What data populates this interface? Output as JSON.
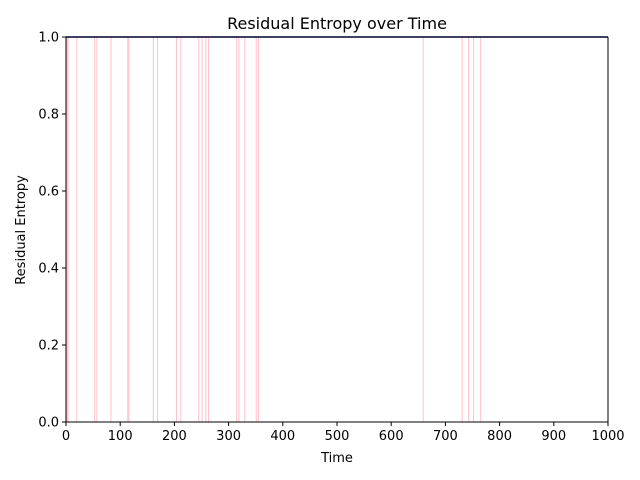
{
  "chart_data": {
    "type": "line",
    "title": "Residual Entropy over Time",
    "xlabel": "Time",
    "ylabel": "Residual Entropy",
    "xlim": [
      0,
      1000
    ],
    "ylim": [
      0,
      1.0
    ],
    "xticks": [
      "0",
      "100",
      "200",
      "300",
      "400",
      "500",
      "600",
      "700",
      "800",
      "900",
      "1000"
    ],
    "yticks": [
      "0.0",
      "0.2",
      "0.4",
      "0.6",
      "0.8",
      "1.0"
    ],
    "grid": false,
    "series": [
      {
        "color": "#00008b",
        "x": [
          0,
          1000
        ],
        "y": [
          1.0,
          1.0
        ]
      }
    ],
    "event_marker_color": "#ffc0cb",
    "event_markers_x": [
      2,
      4,
      20,
      53,
      57,
      83,
      114,
      116,
      161,
      169,
      204,
      212,
      245,
      251,
      258,
      263,
      315,
      319,
      330,
      351,
      355,
      659,
      731,
      743,
      752,
      765
    ]
  }
}
